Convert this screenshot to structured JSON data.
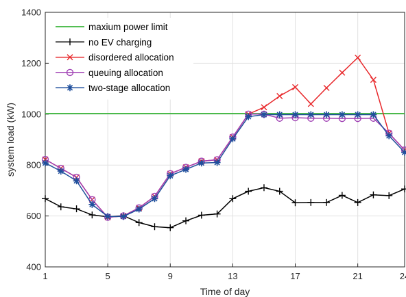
{
  "chart_data": {
    "type": "line",
    "title": "",
    "xlabel": "Time of day",
    "ylabel": "system load (kW)",
    "xlim": [
      1,
      24
    ],
    "ylim": [
      400,
      1400
    ],
    "xticks": [
      1,
      5,
      9,
      13,
      17,
      21,
      24
    ],
    "yticks": [
      400,
      600,
      800,
      1000,
      1200,
      1400
    ],
    "grid": true,
    "legend_position": "top-left",
    "x": [
      1,
      2,
      3,
      4,
      5,
      6,
      7,
      8,
      9,
      10,
      11,
      12,
      13,
      14,
      15,
      16,
      17,
      18,
      19,
      20,
      21,
      22,
      23,
      24
    ],
    "series": [
      {
        "name": "maxium power limit",
        "color": "#3cb43c",
        "marker": "none",
        "x": [
          1,
          24
        ],
        "values": [
          1002,
          1002
        ]
      },
      {
        "name": "no EV charging",
        "color": "#000000",
        "marker": "plus",
        "values": [
          668,
          636,
          628,
          604,
          597,
          601,
          574,
          558,
          554,
          581,
          603,
          608,
          668,
          697,
          711,
          697,
          652,
          653,
          653,
          681,
          653,
          683,
          680,
          706
        ]
      },
      {
        "name": "disordered allocation",
        "color": "#e8282b",
        "marker": "x",
        "values": [
          822,
          787,
          752,
          664,
          595,
          600,
          632,
          677,
          766,
          791,
          815,
          821,
          910,
          1000,
          1027,
          1071,
          1106,
          1040,
          1103,
          1163,
          1222,
          1135,
          925,
          859
        ]
      },
      {
        "name": "queuing allocation",
        "color": "#a040b4",
        "marker": "circle",
        "values": [
          822,
          787,
          752,
          664,
          595,
          600,
          632,
          677,
          766,
          791,
          815,
          821,
          910,
          1000,
          1000,
          984,
          986,
          984,
          984,
          983,
          983,
          984,
          925,
          859
        ]
      },
      {
        "name": "two-stage allocation",
        "color": "#1f4f9c",
        "marker": "star",
        "values": [
          808,
          776,
          738,
          645,
          598,
          598,
          627,
          668,
          758,
          783,
          808,
          810,
          903,
          990,
          998,
          998,
          998,
          998,
          998,
          998,
          998,
          998,
          915,
          850
        ]
      }
    ]
  }
}
